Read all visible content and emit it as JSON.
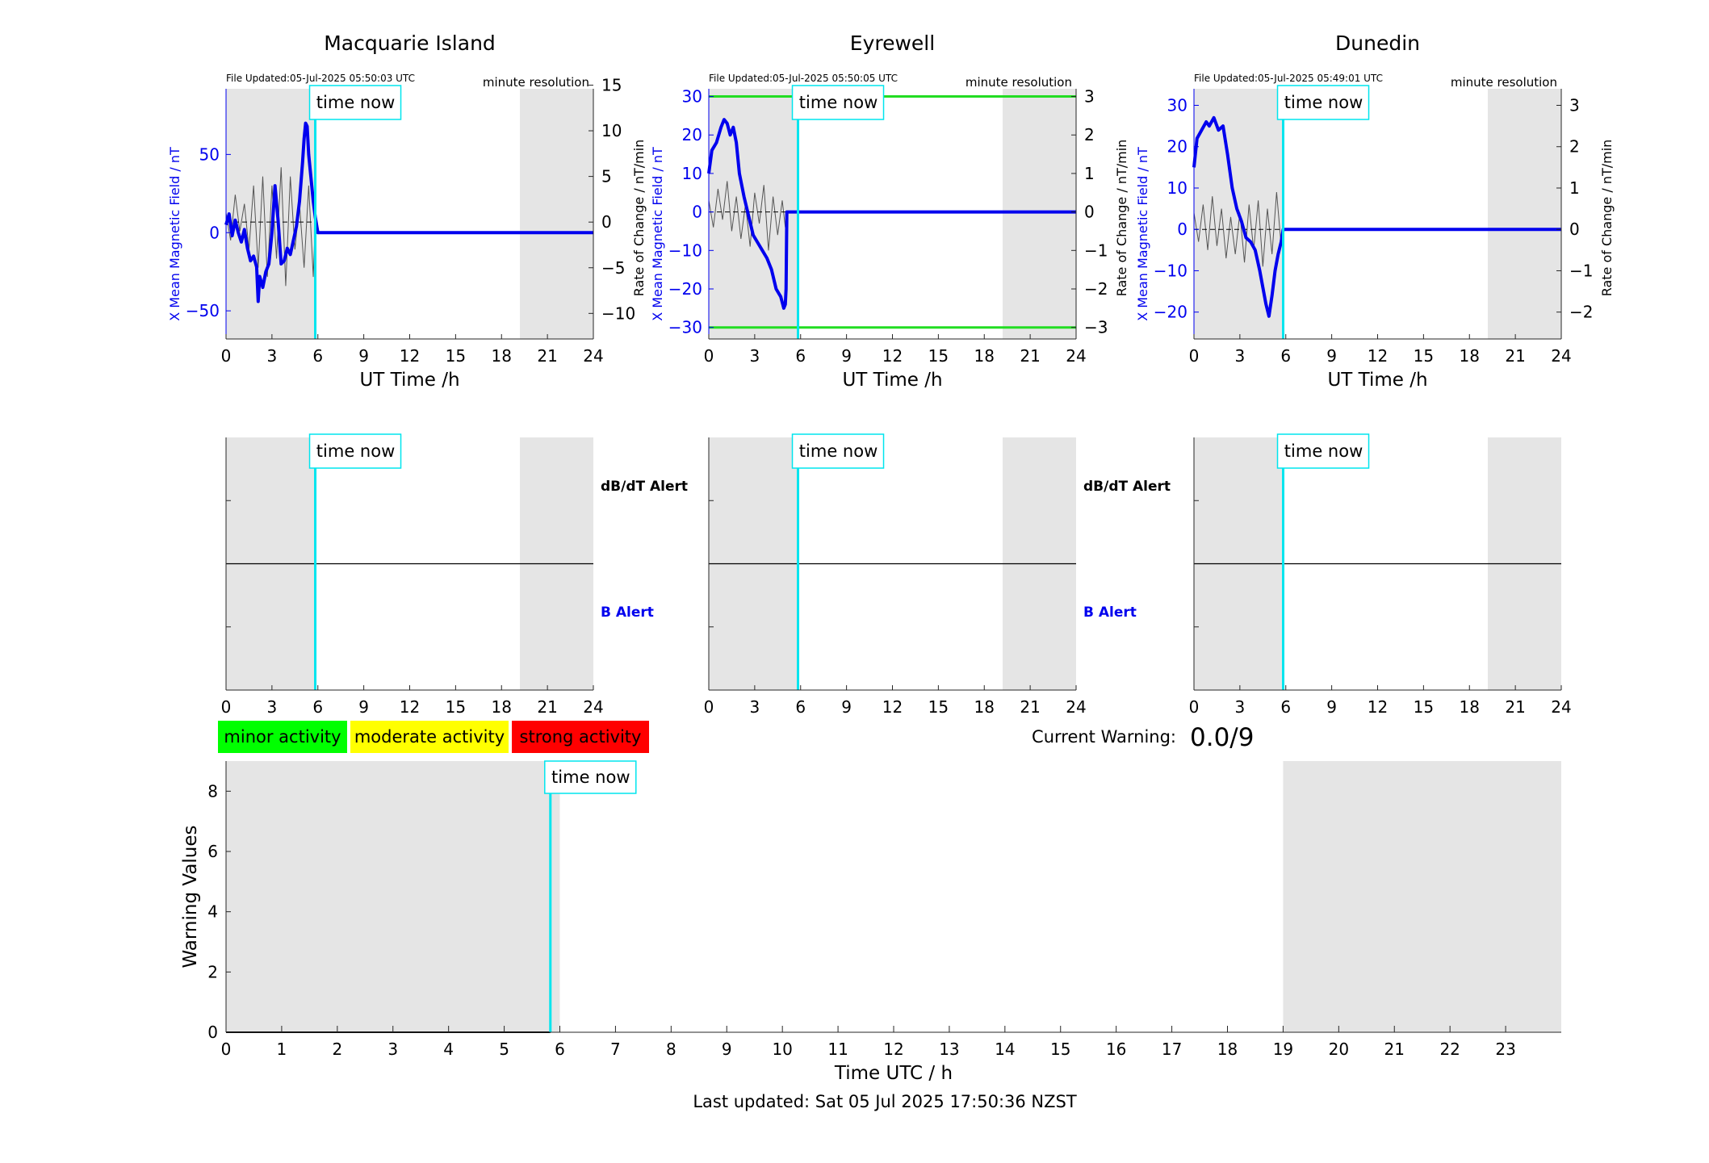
{
  "footer": {
    "last_updated": "Last updated: Sat 05 Jul 2025 17:50:36 NZST"
  },
  "labels": {
    "time_now": "time now",
    "minute_resolution": "minute resolution",
    "ut_xlabel": "UT Time /h",
    "x_field_ylabel": "X Mean Magnetic Field / nT",
    "rate_ylabel": "Rate of Change / nT/min",
    "dbdt_alert": "dB/dT Alert",
    "b_alert": "B Alert",
    "current_warning_label": "Current Warning:",
    "current_warning_value": "0.0/9"
  },
  "legend": {
    "minor": "minor activity",
    "moderate": "moderate activity",
    "strong": "strong activity"
  },
  "colors": {
    "field_line": "#0000ee",
    "rate_line": "#555555",
    "time_now": "#00e5ee",
    "night_shade": "#e5e5e5",
    "threshold": "#22dd22",
    "minor": "#00ff00",
    "moderate": "#ffff00",
    "strong": "#ff0000"
  },
  "chart_data": [
    {
      "type": "line",
      "title": "Macquarie Island",
      "file_updated": "File Updated:05-Jul-2025 05:50:03 UTC",
      "xlabel": "UT Time /h",
      "ylabel": "X Mean Magnetic Field / nT",
      "ylabel_right": "Rate of Change / nT/min",
      "xlim": [
        0,
        24
      ],
      "ylim": [
        -68,
        92
      ],
      "ylim_right": [
        -12.8,
        14.6
      ],
      "xticks": [
        0,
        3,
        6,
        9,
        12,
        15,
        18,
        21,
        24
      ],
      "yticks": [
        -50,
        0,
        50
      ],
      "yticks_right": [
        -10,
        -5,
        0,
        5,
        10,
        15
      ],
      "time_now": 5.83,
      "night_shading": [
        [
          0,
          5.83
        ],
        [
          19.2,
          24
        ]
      ],
      "series": [
        {
          "name": "X Mean Magnetic Field",
          "axis": "left",
          "x": [
            0,
            0.2,
            0.4,
            0.6,
            0.8,
            1.0,
            1.2,
            1.4,
            1.6,
            1.8,
            2.0,
            2.1,
            2.2,
            2.4,
            2.6,
            2.8,
            3.0,
            3.2,
            3.4,
            3.6,
            3.8,
            4.0,
            4.2,
            4.4,
            4.6,
            4.8,
            5.0,
            5.1,
            5.2,
            5.3,
            5.4,
            5.5,
            5.6,
            5.7,
            5.83,
            6.0,
            24
          ],
          "values": [
            5,
            12,
            -2,
            8,
            0,
            -6,
            2,
            -10,
            -18,
            -15,
            -22,
            -44,
            -28,
            -35,
            -25,
            -20,
            0,
            30,
            8,
            -20,
            -18,
            -10,
            -14,
            -5,
            4,
            20,
            45,
            60,
            70,
            68,
            50,
            40,
            30,
            20,
            10,
            0,
            0
          ]
        },
        {
          "name": "Rate of Change",
          "axis": "right",
          "x": [
            0,
            0.3,
            0.6,
            0.9,
            1.2,
            1.5,
            1.8,
            2.1,
            2.4,
            2.7,
            3.0,
            3.3,
            3.6,
            3.9,
            4.2,
            4.5,
            4.8,
            5.1,
            5.4,
            5.7,
            5.83
          ],
          "values": [
            1,
            -2,
            3,
            -1,
            2,
            -3,
            4,
            -5,
            5,
            -6,
            4,
            -4,
            6,
            -7,
            5,
            -3,
            2,
            -5,
            4,
            -6,
            0
          ]
        }
      ]
    },
    {
      "type": "line",
      "title": "Eyrewell",
      "file_updated": "File Updated:05-Jul-2025 05:50:05 UTC",
      "xlabel": "UT Time /h",
      "ylabel": "X Mean Magnetic Field / nT",
      "ylabel_right": "Rate of Change / nT/min",
      "xlim": [
        0,
        24
      ],
      "ylim": [
        -33,
        32
      ],
      "ylim_right": [
        -3.3,
        3.2
      ],
      "xticks": [
        0,
        3,
        6,
        9,
        12,
        15,
        18,
        21,
        24
      ],
      "yticks": [
        -30,
        -20,
        -10,
        0,
        10,
        20,
        30
      ],
      "yticks_right": [
        -3,
        -2,
        -1,
        0,
        1,
        2,
        3
      ],
      "thresholds": [
        30,
        -30
      ],
      "time_now": 5.83,
      "night_shading": [
        [
          0,
          5.83
        ],
        [
          19.2,
          24
        ]
      ],
      "series": [
        {
          "name": "X Mean Magnetic Field",
          "axis": "left",
          "x": [
            0,
            0.2,
            0.5,
            0.8,
            1.0,
            1.2,
            1.4,
            1.6,
            1.8,
            2.0,
            2.3,
            2.6,
            2.9,
            3.2,
            3.5,
            3.8,
            4.1,
            4.4,
            4.7,
            4.9,
            5.0,
            5.05,
            5.1,
            5.83,
            24
          ],
          "values": [
            10,
            16,
            18,
            22,
            24,
            23,
            20,
            22,
            18,
            10,
            4,
            -1,
            -6,
            -8,
            -10,
            -12,
            -15,
            -20,
            -22,
            -25,
            -24,
            -20,
            0,
            0,
            0
          ]
        },
        {
          "name": "Rate of Change",
          "axis": "right",
          "x": [
            0,
            0.3,
            0.6,
            0.9,
            1.2,
            1.5,
            1.8,
            2.1,
            2.4,
            2.7,
            3.0,
            3.3,
            3.6,
            3.9,
            4.2,
            4.5,
            4.8,
            5.0
          ],
          "values": [
            0.3,
            -0.4,
            0.6,
            -0.2,
            0.8,
            -0.5,
            0.4,
            -0.7,
            0.2,
            -0.9,
            0.5,
            -0.3,
            0.7,
            -1.0,
            0.4,
            -0.6,
            0.3,
            -0.4
          ]
        }
      ]
    },
    {
      "type": "line",
      "title": "Dunedin",
      "file_updated": "File Updated:05-Jul-2025 05:49:01 UTC",
      "xlabel": "UT Time /h",
      "ylabel": "X Mean Magnetic Field / nT",
      "ylabel_right": "Rate of Change / nT/min",
      "xlim": [
        0,
        24
      ],
      "ylim": [
        -26.5,
        34
      ],
      "ylim_right": [
        -2.65,
        3.4
      ],
      "xticks": [
        0,
        3,
        6,
        9,
        12,
        15,
        18,
        21,
        24
      ],
      "yticks": [
        -20,
        -10,
        0,
        10,
        20,
        30
      ],
      "yticks_right": [
        -2,
        -1,
        0,
        1,
        2,
        3
      ],
      "time_now": 5.83,
      "night_shading": [
        [
          0,
          5.83
        ],
        [
          19.2,
          24
        ]
      ],
      "series": [
        {
          "name": "X Mean Magnetic Field",
          "axis": "left",
          "x": [
            0,
            0.2,
            0.5,
            0.8,
            1.0,
            1.3,
            1.6,
            1.9,
            2.2,
            2.5,
            2.8,
            3.1,
            3.4,
            3.7,
            4.0,
            4.3,
            4.5,
            4.7,
            4.9,
            5.1,
            5.3,
            5.5,
            5.7,
            5.83,
            24
          ],
          "values": [
            15,
            22,
            24,
            26,
            25,
            27,
            24,
            25,
            18,
            10,
            5,
            2,
            -2,
            -3,
            -5,
            -10,
            -14,
            -18,
            -21,
            -16,
            -10,
            -6,
            -3,
            0,
            0
          ]
        },
        {
          "name": "Rate of Change",
          "axis": "right",
          "x": [
            0,
            0.3,
            0.6,
            0.9,
            1.2,
            1.5,
            1.8,
            2.1,
            2.4,
            2.7,
            3.0,
            3.3,
            3.6,
            3.9,
            4.2,
            4.5,
            4.8,
            5.1,
            5.4,
            5.7
          ],
          "values": [
            0.4,
            -0.3,
            0.6,
            -0.5,
            0.8,
            -0.4,
            0.5,
            -0.7,
            0.3,
            -0.6,
            0.4,
            -0.8,
            0.6,
            -0.5,
            0.7,
            -0.9,
            0.5,
            -0.6,
            0.9,
            -0.4
          ]
        }
      ]
    },
    {
      "type": "line",
      "title": "",
      "xlabel": "UT Time /h",
      "xlim": [
        0,
        24
      ],
      "xticks": [
        0,
        3,
        6,
        9,
        12,
        15,
        18,
        21,
        24
      ],
      "time_now": 5.83,
      "night_shading": [
        [
          0,
          5.83
        ],
        [
          19.2,
          24
        ]
      ],
      "series": []
    },
    {
      "type": "line",
      "title": "",
      "xlim": [
        0,
        24
      ],
      "xticks": [
        0,
        3,
        6,
        9,
        12,
        15,
        18,
        21,
        24
      ],
      "time_now": 5.83,
      "night_shading": [
        [
          0,
          5.83
        ],
        [
          19.2,
          24
        ]
      ],
      "series": []
    },
    {
      "type": "line",
      "title": "",
      "xlim": [
        0,
        24
      ],
      "xticks": [
        0,
        3,
        6,
        9,
        12,
        15,
        18,
        21,
        24
      ],
      "time_now": 5.83,
      "night_shading": [
        [
          0,
          5.83
        ],
        [
          19.2,
          24
        ]
      ],
      "series": []
    },
    {
      "type": "line",
      "title": "",
      "xlabel": "Time UTC / h",
      "ylabel": "Warning Values",
      "xlim": [
        0,
        24
      ],
      "ylim": [
        0,
        9
      ],
      "xticks": [
        0,
        1,
        2,
        3,
        4,
        5,
        6,
        7,
        8,
        9,
        10,
        11,
        12,
        13,
        14,
        15,
        16,
        17,
        18,
        19,
        20,
        21,
        22,
        23
      ],
      "yticks": [
        0,
        2,
        4,
        6,
        8
      ],
      "time_now": 5.83,
      "night_shading": [
        [
          0,
          6
        ],
        [
          19,
          24
        ]
      ],
      "series": [
        {
          "name": "Warning",
          "x": [
            0,
            5.83
          ],
          "values": [
            0,
            0
          ]
        }
      ]
    }
  ]
}
